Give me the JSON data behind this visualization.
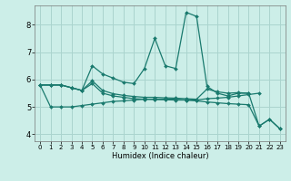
{
  "xlabel": "Humidex (Indice chaleur)",
  "bg_color": "#cceee8",
  "grid_color": "#aad4ce",
  "line_color": "#1a7a6e",
  "xlim": [
    -0.5,
    23.5
  ],
  "ylim": [
    3.75,
    8.7
  ],
  "xticks": [
    0,
    1,
    2,
    3,
    4,
    5,
    6,
    7,
    8,
    9,
    10,
    11,
    12,
    13,
    14,
    15,
    16,
    17,
    18,
    19,
    20,
    21,
    22,
    23
  ],
  "yticks": [
    4,
    5,
    6,
    7,
    8
  ],
  "series": [
    [
      5.8,
      5.8,
      5.8,
      5.7,
      5.6,
      6.5,
      6.2,
      6.05,
      5.9,
      5.85,
      6.4,
      7.5,
      6.5,
      6.4,
      8.45,
      8.3,
      5.75,
      5.5,
      5.4,
      5.5,
      5.5,
      null,
      null,
      null
    ],
    [
      5.8,
      5.8,
      5.8,
      5.7,
      5.6,
      5.85,
      5.5,
      5.4,
      5.35,
      5.3,
      5.28,
      5.27,
      5.26,
      5.25,
      5.25,
      5.25,
      5.3,
      5.32,
      5.35,
      5.4,
      5.45,
      5.5,
      null,
      null
    ],
    [
      5.8,
      5.0,
      5.0,
      5.0,
      5.05,
      5.1,
      5.15,
      5.2,
      5.22,
      5.25,
      5.28,
      5.28,
      5.28,
      5.28,
      5.25,
      5.22,
      5.18,
      5.15,
      5.12,
      5.1,
      5.08,
      4.3,
      4.55,
      4.2
    ],
    [
      5.8,
      5.8,
      5.8,
      5.7,
      5.6,
      5.95,
      5.6,
      5.48,
      5.42,
      5.38,
      5.35,
      5.35,
      5.33,
      5.32,
      5.3,
      5.28,
      5.65,
      5.55,
      5.5,
      5.52,
      5.5,
      4.3,
      4.55,
      4.2
    ]
  ]
}
